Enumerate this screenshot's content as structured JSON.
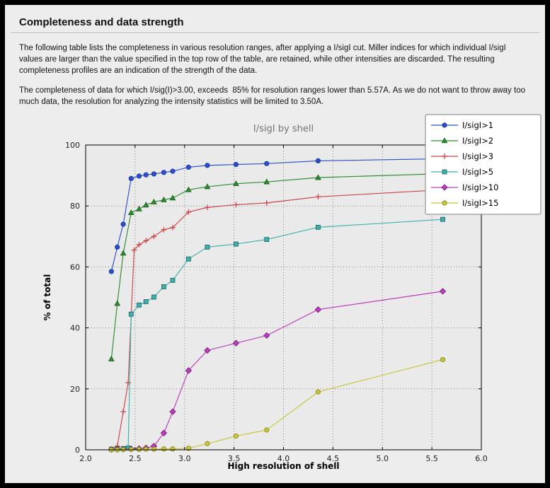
{
  "page": {
    "title": "Completeness and data strength",
    "paragraphs": [
      "The following table lists the completeness in various resolution ranges, after applying a I/sigI cut. Miller indices for which individual I/sigI values are larger than the value specified in the top row of the table, are retained, while other intensities are discarded. The resulting completeness profiles are an indication of the strength of the data.",
      "The completeness of data for which I/sig(I)>3.00, exceeds  85% for resolution ranges lower than 5.57A. As we do not want to throw away too much data, the resolution for analyzing the intensity statistics will be limited to 3.50A."
    ]
  },
  "chart_data": {
    "type": "line",
    "title": "I/sigI by shell",
    "xlabel": "High resolution of shell",
    "ylabel": "% of total",
    "xlim": [
      2.0,
      6.0
    ],
    "ylim": [
      0,
      100
    ],
    "xticks": [
      2.0,
      2.5,
      3.0,
      3.5,
      4.0,
      4.5,
      5.0,
      5.5,
      6.0
    ],
    "xtick_labels": [
      "2.0",
      "2.5",
      "3.0",
      "3.5",
      "4.0",
      "4.5",
      "5.0",
      "5.5",
      "6.0"
    ],
    "yticks": [
      0,
      20,
      40,
      60,
      80,
      100
    ],
    "ytick_labels": [
      "0",
      "20",
      "40",
      "60",
      "80",
      "100"
    ],
    "grid": true,
    "legend_position": "top-right",
    "title_color": "#737373",
    "grid_color": "#7f7f7f",
    "plot_bg": "#eaeaea",
    "series": [
      {
        "name": "I/sigI>1",
        "color": "#2b4fc8",
        "edge_color": "#1a339e",
        "marker": "circle",
        "points": [
          [
            2.26,
            58.5
          ],
          [
            2.32,
            66.5
          ],
          [
            2.38,
            74.0
          ],
          [
            2.46,
            89.0
          ],
          [
            2.54,
            89.8
          ],
          [
            2.61,
            90.2
          ],
          [
            2.69,
            90.5
          ],
          [
            2.79,
            91.0
          ],
          [
            2.88,
            91.4
          ],
          [
            3.04,
            92.7
          ],
          [
            3.23,
            93.3
          ],
          [
            3.52,
            93.6
          ],
          [
            3.83,
            93.9
          ],
          [
            4.35,
            94.8
          ],
          [
            5.61,
            95.5
          ]
        ]
      },
      {
        "name": "I/sigI>2",
        "color": "#2e8b2e",
        "edge_color": "#1d5c1d",
        "marker": "triangle",
        "points": [
          [
            2.26,
            29.8
          ],
          [
            2.32,
            48.0
          ],
          [
            2.38,
            64.5
          ],
          [
            2.46,
            77.8
          ],
          [
            2.54,
            79.0
          ],
          [
            2.61,
            80.3
          ],
          [
            2.69,
            81.3
          ],
          [
            2.79,
            82.0
          ],
          [
            2.88,
            82.6
          ],
          [
            3.04,
            85.3
          ],
          [
            3.23,
            86.3
          ],
          [
            3.52,
            87.3
          ],
          [
            3.83,
            87.9
          ],
          [
            4.35,
            89.3
          ],
          [
            5.61,
            90.6
          ]
        ]
      },
      {
        "name": "I/sigI>3",
        "color": "#cc4444",
        "edge_color": "#a82f2f",
        "marker": "plus",
        "points": [
          [
            2.26,
            0.2
          ],
          [
            2.32,
            1.2
          ],
          [
            2.38,
            12.5
          ],
          [
            2.43,
            22.0
          ],
          [
            2.49,
            65.5
          ],
          [
            2.54,
            67.3
          ],
          [
            2.61,
            68.6
          ],
          [
            2.69,
            70.0
          ],
          [
            2.79,
            72.2
          ],
          [
            2.88,
            72.9
          ],
          [
            3.04,
            78.0
          ],
          [
            3.23,
            79.5
          ],
          [
            3.52,
            80.4
          ],
          [
            3.83,
            81.0
          ],
          [
            4.35,
            83.0
          ],
          [
            5.61,
            85.3
          ]
        ]
      },
      {
        "name": "I/sigI>5",
        "color": "#3fb0ae",
        "edge_color": "#17605e",
        "marker": "square",
        "points": [
          [
            2.26,
            0.2
          ],
          [
            2.32,
            0.3
          ],
          [
            2.38,
            0.4
          ],
          [
            2.43,
            0.6
          ],
          [
            2.46,
            44.5
          ],
          [
            2.54,
            47.5
          ],
          [
            2.61,
            48.6
          ],
          [
            2.69,
            50.1
          ],
          [
            2.79,
            53.5
          ],
          [
            2.88,
            55.6
          ],
          [
            3.04,
            62.6
          ],
          [
            3.23,
            66.5
          ],
          [
            3.52,
            67.5
          ],
          [
            3.83,
            69.0
          ],
          [
            4.35,
            73.0
          ],
          [
            5.61,
            75.6
          ]
        ]
      },
      {
        "name": "I/sigI>10",
        "color": "#bb3dbb",
        "edge_color": "#6e1b6e",
        "marker": "diamond",
        "points": [
          [
            2.26,
            0.1
          ],
          [
            2.32,
            0.1
          ],
          [
            2.38,
            0.2
          ],
          [
            2.46,
            0.3
          ],
          [
            2.54,
            0.4
          ],
          [
            2.61,
            0.6
          ],
          [
            2.69,
            1.2
          ],
          [
            2.79,
            5.5
          ],
          [
            2.88,
            12.5
          ],
          [
            3.04,
            26.0
          ],
          [
            3.23,
            32.6
          ],
          [
            3.52,
            35.0
          ],
          [
            3.83,
            37.5
          ],
          [
            4.35,
            46.0
          ],
          [
            5.61,
            52.0
          ]
        ]
      },
      {
        "name": "I/sigI>15",
        "color": "#c6c63c",
        "edge_color": "#84841c",
        "marker": "circle",
        "points": [
          [
            2.26,
            0.0
          ],
          [
            2.32,
            0.0
          ],
          [
            2.38,
            0.1
          ],
          [
            2.46,
            0.1
          ],
          [
            2.54,
            0.1
          ],
          [
            2.61,
            0.2
          ],
          [
            2.69,
            0.2
          ],
          [
            2.79,
            0.3
          ],
          [
            2.88,
            0.3
          ],
          [
            3.04,
            0.5
          ],
          [
            3.23,
            2.0
          ],
          [
            3.52,
            4.5
          ],
          [
            3.83,
            6.5
          ],
          [
            4.35,
            19.0
          ],
          [
            5.61,
            29.6
          ]
        ]
      }
    ]
  }
}
